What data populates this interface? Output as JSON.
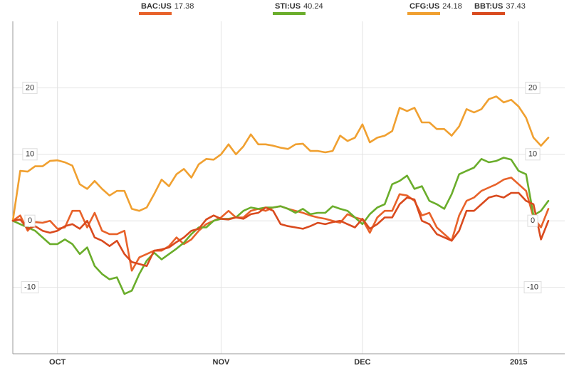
{
  "chart_data": {
    "type": "line",
    "categories": [
      null,
      null,
      null,
      null,
      null,
      null,
      "OCT",
      null,
      null,
      null,
      null,
      null,
      null,
      null,
      null,
      null,
      null,
      null,
      null,
      null,
      null,
      null,
      null,
      null,
      null,
      null,
      null,
      null,
      "NOV",
      null,
      null,
      null,
      null,
      null,
      null,
      null,
      null,
      null,
      null,
      null,
      null,
      null,
      null,
      null,
      null,
      null,
      null,
      "DEC",
      null,
      null,
      null,
      null,
      null,
      null,
      null,
      null,
      null,
      null,
      null,
      null,
      null,
      null,
      null,
      null,
      null,
      null,
      null,
      null,
      "2015",
      null,
      null,
      null,
      null
    ],
    "series": [
      {
        "name": "BAC:US",
        "price": 17.38,
        "color": "#e8622a",
        "values": [
          0,
          0.8,
          -1.5,
          -0.2,
          -0.3,
          0,
          -1.2,
          -1,
          1.5,
          1.5,
          -1,
          1.2,
          -1.5,
          -2,
          -2,
          -1.5,
          -7.5,
          -5.5,
          -5,
          -4.5,
          -4.5,
          -3.8,
          -2.5,
          -3.5,
          -2.8,
          -1.5,
          -0.5,
          0,
          0.5,
          1.5,
          0.5,
          0.5,
          1.5,
          1.8,
          1.5,
          2,
          2.2,
          1.8,
          1.5,
          1.2,
          0.8,
          0.5,
          0.3,
          0,
          -0.3,
          1,
          0.5,
          0.2,
          -1.8,
          0.5,
          1.5,
          1.5,
          4,
          3.8,
          3,
          0.8,
          1.2,
          -1,
          -2,
          -3,
          0.8,
          3,
          3.5,
          4.5,
          5,
          5.5,
          6.2,
          6.5,
          5.5,
          4.5,
          0.5,
          -1,
          1.8
        ]
      },
      {
        "name": "STI:US",
        "price": 40.24,
        "color": "#6aad2b",
        "values": [
          0,
          -0.5,
          -1,
          -1.5,
          -2.5,
          -3.5,
          -3.5,
          -2.8,
          -3.5,
          -5,
          -4,
          -6.8,
          -8,
          -8.8,
          -8.5,
          -11,
          -10.5,
          -8,
          -6,
          -4.8,
          -5.8,
          -5,
          -4.2,
          -3.3,
          -2,
          -1,
          -1,
          0,
          0.3,
          0.3,
          0.5,
          1.5,
          2,
          1.8,
          2,
          2,
          2.2,
          1.8,
          1.2,
          1.8,
          1,
          1.2,
          1.2,
          2.2,
          1.8,
          1.5,
          0.5,
          -0.5,
          1,
          2,
          2.5,
          5.5,
          6,
          6.8,
          4.8,
          5.2,
          3,
          2.5,
          1.8,
          4,
          7,
          7.5,
          8,
          9.3,
          8.8,
          9,
          9.5,
          9.2,
          7.5,
          7,
          0.8,
          1.5,
          3
        ]
      },
      {
        "name": "CFG:US",
        "price": 24.18,
        "color": "#f0a030",
        "values": [
          0,
          7.5,
          7.4,
          8.2,
          8.2,
          9,
          9.1,
          8.8,
          8.3,
          5.5,
          4.8,
          6,
          4.8,
          3.8,
          4.5,
          4.5,
          1.8,
          1.5,
          2,
          4,
          6.2,
          5.2,
          7,
          7.8,
          6.5,
          8.5,
          9.3,
          9.2,
          10,
          11.5,
          10,
          11.2,
          13,
          11.5,
          11.5,
          11.3,
          11,
          10.8,
          11.5,
          11.6,
          10.5,
          10.5,
          10.3,
          10.5,
          12.8,
          12,
          12.5,
          14.5,
          11.8,
          12.5,
          12.8,
          13.5,
          17,
          16.5,
          17,
          14.8,
          14.8,
          13.8,
          13.8,
          12.8,
          14.2,
          16.8,
          16.3,
          16.8,
          18.3,
          18.7,
          17.8,
          18.2,
          17.2,
          15.5,
          12.5,
          11.3,
          12.5
        ]
      },
      {
        "name": "BBT:US",
        "price": 37.43,
        "color": "#d94a1e",
        "values": [
          0,
          0.2,
          -1.2,
          -0.8,
          -1.5,
          -1.8,
          -1.5,
          -0.8,
          -0.5,
          -1.2,
          0,
          -2.5,
          -3,
          -3.8,
          -3,
          -5,
          -6.2,
          -6.5,
          -6.8,
          -4.5,
          -4.3,
          -4,
          -3.2,
          -2.5,
          -1.5,
          -1.2,
          0.2,
          0.8,
          0.3,
          0.2,
          0.5,
          0.3,
          1,
          1.2,
          2,
          1.5,
          -0.5,
          -0.8,
          -1,
          -1.2,
          -0.8,
          -0.3,
          -0.5,
          -0.2,
          0,
          -0.5,
          -1,
          0.3,
          -1.2,
          -0.5,
          0.5,
          0.5,
          2.5,
          3.5,
          3.2,
          0,
          -0.5,
          -2,
          -2.5,
          -3,
          -1.5,
          1.5,
          1.5,
          2.5,
          3.5,
          3.8,
          3.5,
          4.2,
          4.2,
          3,
          2.5,
          -2.8,
          0
        ]
      }
    ],
    "ylim": [
      -20,
      30
    ],
    "yticks": [
      -10,
      0,
      10,
      20
    ],
    "grid": true
  }
}
